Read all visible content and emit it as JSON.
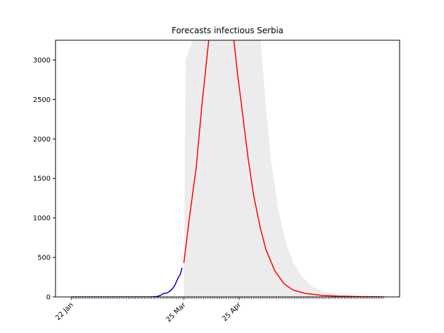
{
  "chart_data": {
    "type": "line",
    "title": "Forecasts infectious Serbia",
    "xlabel": "",
    "ylabel": "",
    "x_start_date": "2020-01-22",
    "x_end_date": "2020-07-15",
    "ylim": [
      0,
      3250
    ],
    "yticks": [
      0,
      500,
      1000,
      1500,
      2000,
      2500,
      3000
    ],
    "xticks": [
      {
        "label": "22 Jan",
        "date": "2020-01-22"
      },
      {
        "label": "25 Mar",
        "date": "2020-03-25"
      },
      {
        "label": "25 Apr",
        "date": "2020-04-25"
      }
    ],
    "grid": false,
    "series": [
      {
        "color": "#0000cc",
        "points": [
          [
            "2020-01-22",
            0
          ],
          [
            "2020-02-15",
            0
          ],
          [
            "2020-03-05",
            0
          ],
          [
            "2020-03-08",
            2
          ],
          [
            "2020-03-10",
            5
          ],
          [
            "2020-03-12",
            20
          ],
          [
            "2020-03-13",
            35
          ],
          [
            "2020-03-14",
            45
          ],
          [
            "2020-03-15",
            48
          ],
          [
            "2020-03-16",
            55
          ],
          [
            "2020-03-17",
            70
          ],
          [
            "2020-03-18",
            90
          ],
          [
            "2020-03-19",
            115
          ],
          [
            "2020-03-20",
            150
          ],
          [
            "2020-03-21",
            200
          ],
          [
            "2020-03-22",
            250
          ],
          [
            "2020-03-23",
            285
          ],
          [
            "2020-03-24",
            370
          ]
        ]
      },
      {
        "color": "#ff0000",
        "points": [
          [
            "2020-03-25",
            430
          ],
          [
            "2020-03-28",
            980
          ],
          [
            "2020-04-01",
            1650
          ],
          [
            "2020-04-04",
            2400
          ],
          [
            "2020-04-08",
            3260
          ],
          [
            "2020-04-15",
            3800
          ],
          [
            "2020-04-20",
            3600
          ],
          [
            "2020-04-22",
            3260
          ],
          [
            "2020-04-24",
            2850
          ],
          [
            "2020-04-27",
            2300
          ],
          [
            "2020-04-30",
            1760
          ],
          [
            "2020-05-03",
            1300
          ],
          [
            "2020-05-07",
            860
          ],
          [
            "2020-05-10",
            600
          ],
          [
            "2020-05-15",
            330
          ],
          [
            "2020-05-20",
            170
          ],
          [
            "2020-05-25",
            90
          ],
          [
            "2020-06-01",
            45
          ],
          [
            "2020-06-10",
            20
          ],
          [
            "2020-06-20",
            9
          ],
          [
            "2020-06-30",
            4
          ],
          [
            "2020-07-10",
            2
          ],
          [
            "2020-07-15",
            1
          ]
        ]
      }
    ],
    "bands": [
      {
        "color": "#ececec",
        "upper": [
          [
            "2020-03-25",
            0
          ],
          [
            "2020-03-26",
            3000
          ],
          [
            "2020-03-30",
            3300
          ],
          [
            "2020-05-07",
            3300
          ],
          [
            "2020-05-10",
            2400
          ],
          [
            "2020-05-13",
            1700
          ],
          [
            "2020-05-17",
            1100
          ],
          [
            "2020-05-21",
            700
          ],
          [
            "2020-05-25",
            450
          ],
          [
            "2020-05-30",
            260
          ],
          [
            "2020-06-05",
            130
          ],
          [
            "2020-06-12",
            60
          ],
          [
            "2020-06-20",
            30
          ],
          [
            "2020-07-01",
            12
          ],
          [
            "2020-07-15",
            4
          ]
        ],
        "lower": [
          [
            "2020-03-25",
            0
          ],
          [
            "2020-07-15",
            0
          ]
        ]
      }
    ]
  }
}
